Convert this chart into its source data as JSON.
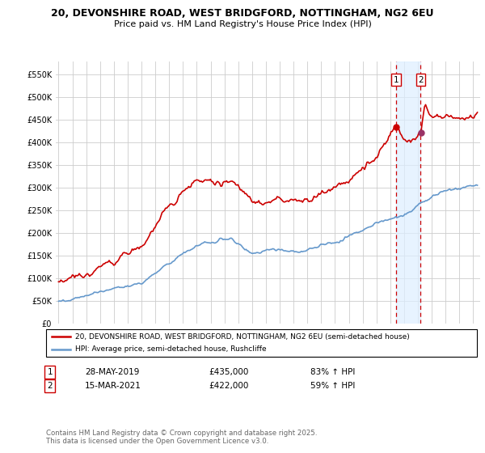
{
  "title_line1": "20, DEVONSHIRE ROAD, WEST BRIDGFORD, NOTTINGHAM, NG2 6EU",
  "title_line2": "Price paid vs. HM Land Registry's House Price Index (HPI)",
  "bg_color": "#ffffff",
  "plot_bg_color": "#ffffff",
  "grid_color": "#cccccc",
  "red_color": "#cc0000",
  "blue_color": "#6699cc",
  "shade_color": "#ddeeff",
  "marker1_x": 2019.41,
  "marker2_x": 2021.2,
  "marker1_y": 435000,
  "marker2_y": 422000,
  "annotation1": {
    "num": "1",
    "date": "28-MAY-2019",
    "price": "£435,000",
    "hpi": "83% ↑ HPI"
  },
  "annotation2": {
    "num": "2",
    "date": "15-MAR-2021",
    "price": "£422,000",
    "hpi": "59% ↑ HPI"
  },
  "legend_line1": "20, DEVONSHIRE ROAD, WEST BRIDGFORD, NOTTINGHAM, NG2 6EU (semi-detached house)",
  "legend_line2": "HPI: Average price, semi-detached house, Rushcliffe",
  "footer": "Contains HM Land Registry data © Crown copyright and database right 2025.\nThis data is licensed under the Open Government Licence v3.0.",
  "xlim": [
    1994.8,
    2025.5
  ],
  "ylim": [
    0,
    580000
  ],
  "yticks": [
    0,
    50000,
    100000,
    150000,
    200000,
    250000,
    300000,
    350000,
    400000,
    450000,
    500000,
    550000
  ],
  "ytick_labels": [
    "£0",
    "£50K",
    "£100K",
    "£150K",
    "£200K",
    "£250K",
    "£300K",
    "£350K",
    "£400K",
    "£450K",
    "£500K",
    "£550K"
  ],
  "xticks": [
    1995,
    1996,
    1997,
    1998,
    1999,
    2000,
    2001,
    2002,
    2003,
    2004,
    2005,
    2006,
    2007,
    2008,
    2009,
    2010,
    2011,
    2012,
    2013,
    2014,
    2015,
    2016,
    2017,
    2018,
    2019,
    2020,
    2021,
    2022,
    2023,
    2024,
    2025
  ]
}
